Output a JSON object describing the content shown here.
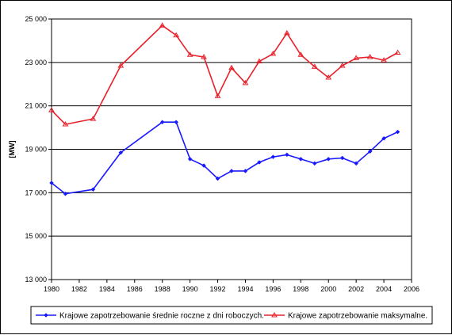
{
  "chart_data": {
    "type": "line",
    "title": "",
    "xlabel": "",
    "ylabel": "[MW]",
    "xlim": [
      1980,
      2006
    ],
    "ylim": [
      13000,
      25000
    ],
    "x_ticks": [
      1980,
      1982,
      1984,
      1986,
      1988,
      1990,
      1992,
      1994,
      1996,
      1998,
      2000,
      2002,
      2004,
      2006
    ],
    "y_ticks": [
      13000,
      15000,
      17000,
      19000,
      21000,
      23000,
      25000
    ],
    "y_tick_labels": [
      "13 000",
      "15 000",
      "17 000",
      "19 000",
      "21 000",
      "23 000",
      "25 000"
    ],
    "grid": "horizontal",
    "legend_position": "bottom",
    "series": [
      {
        "name": "Krajowe zapotrzebowanie średnie roczne z dni roboczych.",
        "color": "#1a1aff",
        "marker": "diamond",
        "x": [
          1980,
          1981,
          1983,
          1985,
          1988,
          1989,
          1990,
          1991,
          1992,
          1993,
          1994,
          1995,
          1996,
          1997,
          1998,
          1999,
          2000,
          2001,
          2002,
          2003,
          2004,
          2005
        ],
        "values": [
          17450,
          16950,
          17150,
          18850,
          20250,
          20250,
          18550,
          18250,
          17650,
          18000,
          18000,
          18400,
          18650,
          18750,
          18550,
          18350,
          18550,
          18600,
          18350,
          18900,
          19500,
          19800
        ]
      },
      {
        "name": "Krajowe zapotrzebowanie maksymalne.",
        "color": "#e8202a",
        "marker": "triangle",
        "x": [
          1980,
          1981,
          1983,
          1985,
          1988,
          1989,
          1990,
          1991,
          1992,
          1993,
          1994,
          1995,
          1996,
          1997,
          1998,
          1999,
          2000,
          2001,
          2002,
          2003,
          2004,
          2005
        ],
        "values": [
          20800,
          20150,
          20400,
          22850,
          24700,
          24250,
          23350,
          23250,
          21450,
          22750,
          22050,
          23050,
          23400,
          24350,
          23350,
          22800,
          22300,
          22850,
          23200,
          23250,
          23100,
          23450
        ]
      }
    ]
  }
}
